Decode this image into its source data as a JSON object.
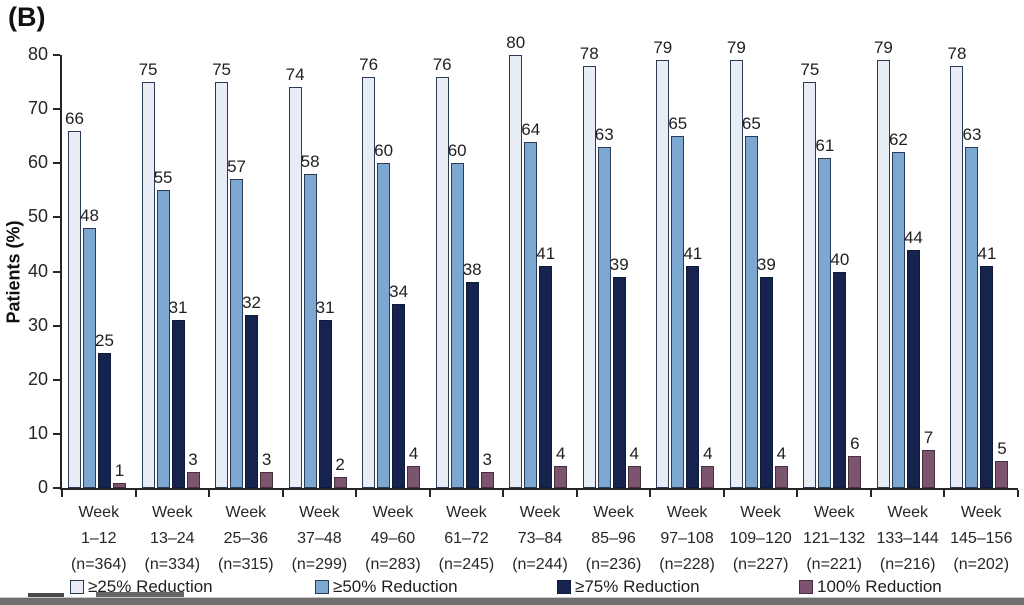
{
  "panel_label": "(B)",
  "chart_data": {
    "type": "bar",
    "title": "",
    "xlabel": "",
    "ylabel": "Patients (%)",
    "ylim": [
      0,
      80
    ],
    "yticks": [
      0,
      10,
      20,
      30,
      40,
      50,
      60,
      70,
      80
    ],
    "grid": false,
    "legend_position": "bottom",
    "categories": [
      {
        "week": "Week",
        "range": "1–12",
        "n": "(n=364)"
      },
      {
        "week": "Week",
        "range": "13–24",
        "n": "(n=334)"
      },
      {
        "week": "Week",
        "range": "25–36",
        "n": "(n=315)"
      },
      {
        "week": "Week",
        "range": "37–48",
        "n": "(n=299)"
      },
      {
        "week": "Week",
        "range": "49–60",
        "n": "(n=283)"
      },
      {
        "week": "Week",
        "range": "61–72",
        "n": "(n=245)"
      },
      {
        "week": "Week",
        "range": "73–84",
        "n": "(n=244)"
      },
      {
        "week": "Week",
        "range": "85–96",
        "n": "(n=236)"
      },
      {
        "week": "Week",
        "range": "97–108",
        "n": "(n=228)"
      },
      {
        "week": "Week",
        "range": "109–120",
        "n": "(n=227)"
      },
      {
        "week": "Week",
        "range": "121–132",
        "n": "(n=221)"
      },
      {
        "week": "Week",
        "range": "133–144",
        "n": "(n=216)"
      },
      {
        "week": "Week",
        "range": "145–156",
        "n": "(n=202)"
      }
    ],
    "series": [
      {
        "name": "≥25% Reduction",
        "color": "#E8ECF5",
        "border": "#2B3A55",
        "values": [
          66,
          75,
          75,
          74,
          76,
          76,
          80,
          78,
          79,
          79,
          75,
          79,
          78
        ]
      },
      {
        "name": "≥50% Reduction",
        "color": "#7CA7D1",
        "border": "#2B3A55",
        "values": [
          48,
          55,
          57,
          58,
          60,
          60,
          64,
          63,
          65,
          65,
          61,
          62,
          63
        ]
      },
      {
        "name": "≥75% Reduction",
        "color": "#16234F",
        "border": "#0F1A3A",
        "values": [
          25,
          31,
          32,
          31,
          34,
          38,
          41,
          39,
          41,
          39,
          40,
          44,
          41
        ]
      },
      {
        "name": "100% Reduction",
        "color": "#7C5470",
        "border": "#44303F",
        "values": [
          1,
          3,
          3,
          2,
          4,
          3,
          4,
          4,
          4,
          4,
          6,
          7,
          5
        ]
      }
    ]
  }
}
